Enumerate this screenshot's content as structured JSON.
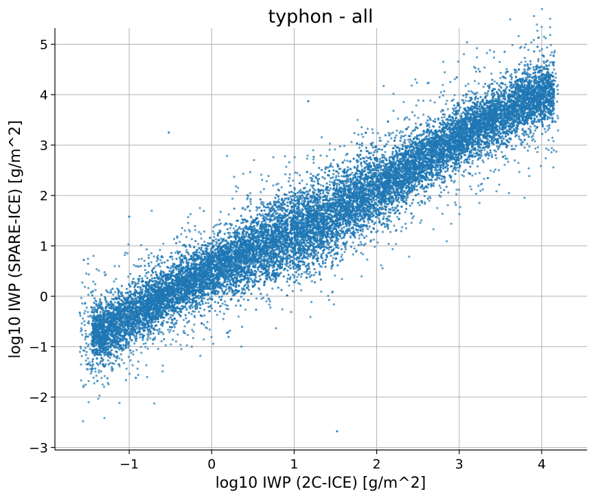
{
  "chart_data": {
    "type": "scatter",
    "title": "typhon - all",
    "xlabel": "log10 IWP (2C-ICE) [g/m^2]",
    "ylabel": "log10 IWP (SPARE-ICE) [g/m^2]",
    "xlim": [
      -1.9,
      4.55
    ],
    "ylim": [
      -3.05,
      5.32
    ],
    "xticks": [
      -1,
      0,
      1,
      2,
      3,
      4
    ],
    "yticks": [
      -3,
      -2,
      -1,
      0,
      1,
      2,
      3,
      4,
      5
    ],
    "xtick_labels": [
      "−1",
      "0",
      "1",
      "2",
      "3",
      "4"
    ],
    "ytick_labels": [
      "−3",
      "−2",
      "−1",
      "0",
      "1",
      "2",
      "3",
      "4",
      "5"
    ],
    "grid": true,
    "color": "#1f77b4",
    "series": [
      {
        "points": [
          [
            -1.5,
            -0.8
          ],
          [
            -1.4,
            -0.7
          ],
          [
            -1.3,
            -0.75
          ],
          [
            -1.2,
            -0.6
          ],
          [
            -1.1,
            -0.5
          ],
          [
            -1.0,
            -0.4
          ],
          [
            -0.9,
            -0.3
          ],
          [
            -0.8,
            -0.2
          ],
          [
            -0.6,
            0.0
          ],
          [
            -0.4,
            0.2
          ],
          [
            -0.2,
            0.35
          ],
          [
            0.0,
            0.5
          ],
          [
            0.2,
            0.65
          ],
          [
            0.4,
            0.8
          ],
          [
            0.6,
            0.95
          ],
          [
            0.8,
            1.1
          ],
          [
            1.0,
            1.25
          ],
          [
            1.2,
            1.4
          ],
          [
            1.4,
            1.55
          ],
          [
            1.6,
            1.75
          ],
          [
            1.8,
            1.95
          ],
          [
            2.0,
            2.15
          ],
          [
            2.2,
            2.35
          ],
          [
            2.4,
            2.55
          ],
          [
            2.6,
            2.75
          ],
          [
            2.8,
            2.95
          ],
          [
            3.0,
            3.15
          ],
          [
            3.2,
            3.35
          ],
          [
            3.4,
            3.5
          ],
          [
            3.6,
            3.7
          ],
          [
            3.8,
            3.85
          ],
          [
            4.0,
            4.0
          ],
          [
            4.15,
            4.05
          ],
          [
            -0.52,
            3.25
          ],
          [
            1.52,
            -2.68
          ],
          [
            3.95,
            4.95
          ],
          [
            1.17,
            3.87
          ],
          [
            -1.5,
            -1.35
          ],
          [
            -0.92,
            -1.62
          ],
          [
            -1.55,
            0.72
          ],
          [
            -1.0,
            1.58
          ]
        ]
      }
    ]
  }
}
